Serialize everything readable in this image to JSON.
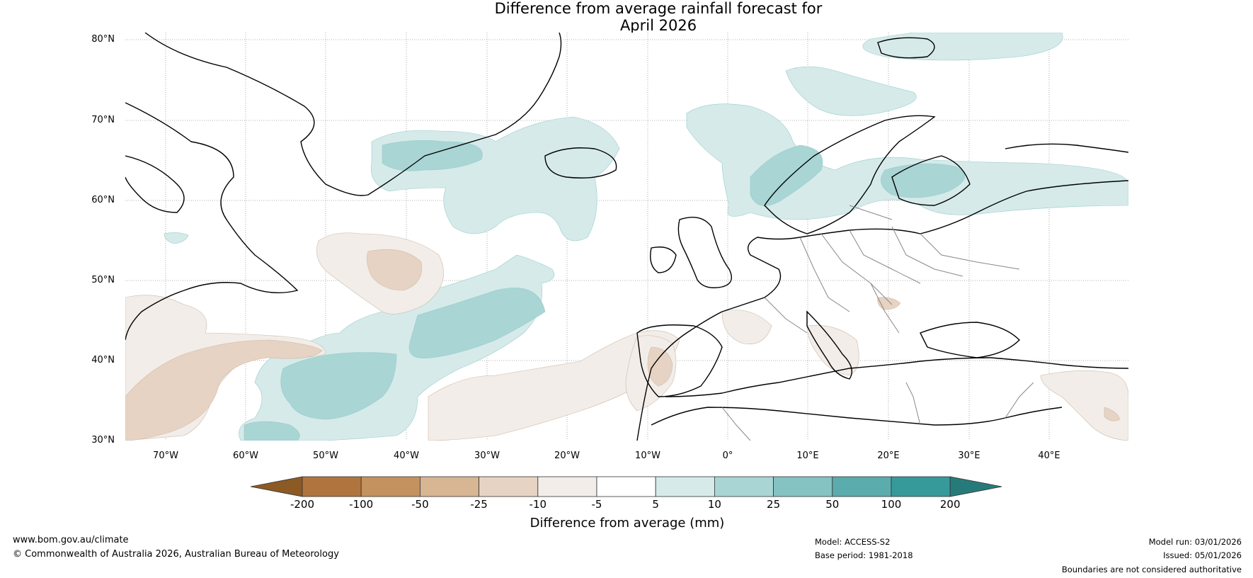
{
  "title": {
    "line1": "Difference from average rainfall forecast for",
    "line2": "April 2026"
  },
  "map": {
    "latitude_labels": [
      "80°N",
      "70°N",
      "60°N",
      "50°N",
      "40°N",
      "30°N"
    ],
    "longitude_labels": [
      "70°W",
      "60°W",
      "50°W",
      "40°W",
      "30°W",
      "20°W",
      "10°W",
      "0°",
      "10°E",
      "20°E",
      "30°E",
      "40°E"
    ],
    "region": "North Atlantic and Europe"
  },
  "legend": {
    "title": "Difference from average (mm)",
    "tick_labels": [
      "-200",
      "-100",
      "-50",
      "-25",
      "-10",
      "-5",
      "5",
      "10",
      "25",
      "50",
      "100",
      "200"
    ],
    "colors": [
      "#8c5a24",
      "#b0753f",
      "#c4925f",
      "#d8b593",
      "#e7d3c3",
      "#f2ede8",
      "#ffffff",
      "#d6eaea",
      "#a9d5d4",
      "#84c3c1",
      "#5bacac",
      "#369a9a",
      "#267b7a"
    ]
  },
  "footer": {
    "website": "www.bom.gov.au/climate",
    "copyright": "© Commonwealth of Australia 2026, Australian Bureau of Meteorology",
    "model": "Model: ACCESS-S2",
    "base_period": "Base period: 1981-2018",
    "model_run": "Model run: 03/01/2026",
    "issued": "Issued: 05/01/2026",
    "disclaimer": "Boundaries are not considered authoritative"
  }
}
